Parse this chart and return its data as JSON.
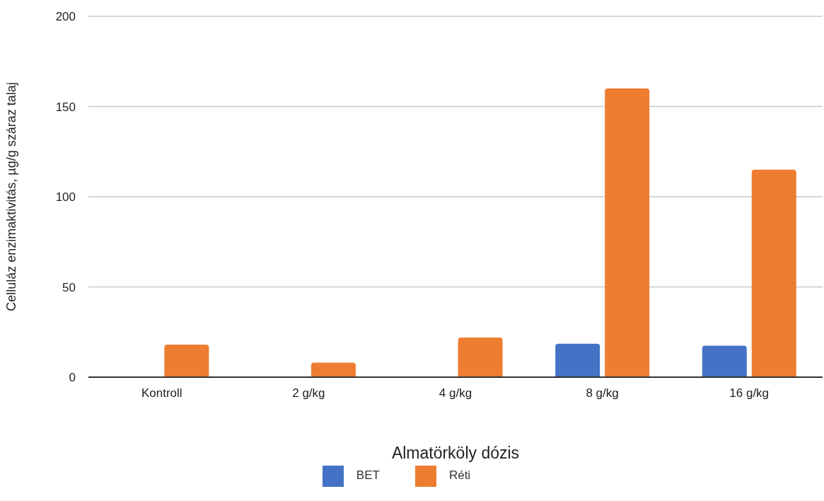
{
  "chart_data": {
    "type": "bar",
    "xlabel": "Almatörköly dózis",
    "ylabel": "Celluláz enzimaktivitás, µg/g száraz talaj",
    "categories": [
      "Kontroll",
      "2 g/kg",
      "4 g/kg",
      "8 g/kg",
      "16 g/kg"
    ],
    "series": [
      {
        "name": "BET",
        "color": "#4472c4",
        "values": [
          null,
          null,
          null,
          18.5,
          17.5
        ]
      },
      {
        "name": "Réti",
        "color": "#ed7d31",
        "values": [
          18,
          8,
          22,
          160,
          115
        ]
      }
    ],
    "ylim": [
      0,
      200
    ],
    "yticks": [
      0,
      50,
      100,
      150,
      200
    ],
    "grid": "y",
    "legend": "bottom"
  }
}
